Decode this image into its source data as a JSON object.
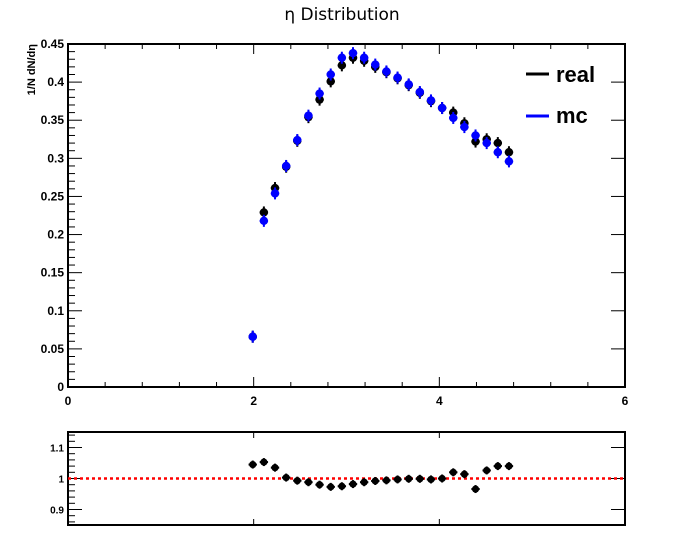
{
  "chart_data": [
    {
      "type": "scatter",
      "title": "η Distribution",
      "xlabel": "",
      "ylabel": "1/N dN/dη",
      "xlim": [
        0,
        6
      ],
      "ylim": [
        0,
        0.45
      ],
      "x_ticks": [
        "0",
        "2",
        "4",
        "6"
      ],
      "y_ticks": [
        "0",
        "0.05",
        "0.1",
        "0.15",
        "0.2",
        "0.25",
        "0.3",
        "0.35",
        "0.4",
        "0.45"
      ],
      "grid": false,
      "legend_position": "top-right",
      "x": [
        1.99,
        2.11,
        2.23,
        2.35,
        2.47,
        2.59,
        2.71,
        2.83,
        2.95,
        3.07,
        3.19,
        3.31,
        3.43,
        3.55,
        3.67,
        3.79,
        3.91,
        4.03,
        4.15,
        4.27,
        4.39,
        4.51,
        4.63,
        4.75
      ],
      "series": [
        {
          "name": "real",
          "color": "#000000",
          "values": [
            0.066,
            0.229,
            0.261,
            0.289,
            0.323,
            0.354,
            0.377,
            0.401,
            0.422,
            0.432,
            0.428,
            0.42,
            0.413,
            0.405,
            0.396,
            0.386,
            0.375,
            0.366,
            0.36,
            0.346,
            0.322,
            0.325,
            0.32,
            0.308
          ]
        },
        {
          "name": "mc",
          "color": "#0000ff",
          "values": [
            0.066,
            0.218,
            0.254,
            0.29,
            0.324,
            0.356,
            0.385,
            0.41,
            0.432,
            0.438,
            0.432,
            0.423,
            0.414,
            0.406,
            0.397,
            0.387,
            0.376,
            0.366,
            0.353,
            0.341,
            0.33,
            0.32,
            0.308,
            0.296
          ]
        }
      ]
    },
    {
      "type": "scatter",
      "title": "",
      "xlabel": "",
      "ylabel": "",
      "xlim": [
        0,
        6
      ],
      "ylim": [
        0.85,
        1.15
      ],
      "y_ticks": [
        "0.9",
        "1",
        "1.1"
      ],
      "reference_line": 1,
      "reference_color": "#ff0000",
      "x": [
        1.99,
        2.11,
        2.23,
        2.35,
        2.47,
        2.59,
        2.71,
        2.83,
        2.95,
        3.07,
        3.19,
        3.31,
        3.43,
        3.55,
        3.67,
        3.79,
        3.91,
        4.03,
        4.15,
        4.27,
        4.39,
        4.51,
        4.63,
        4.75
      ],
      "series": [
        {
          "name": "",
          "color": "#000000",
          "values": [
            1.045,
            1.053,
            1.035,
            1.003,
            0.993,
            0.988,
            0.98,
            0.973,
            0.975,
            0.982,
            0.988,
            0.992,
            0.994,
            0.997,
            0.999,
            0.999,
            0.997,
            1.0,
            1.02,
            1.014,
            0.966,
            1.026,
            1.04,
            1.04
          ]
        }
      ]
    }
  ]
}
